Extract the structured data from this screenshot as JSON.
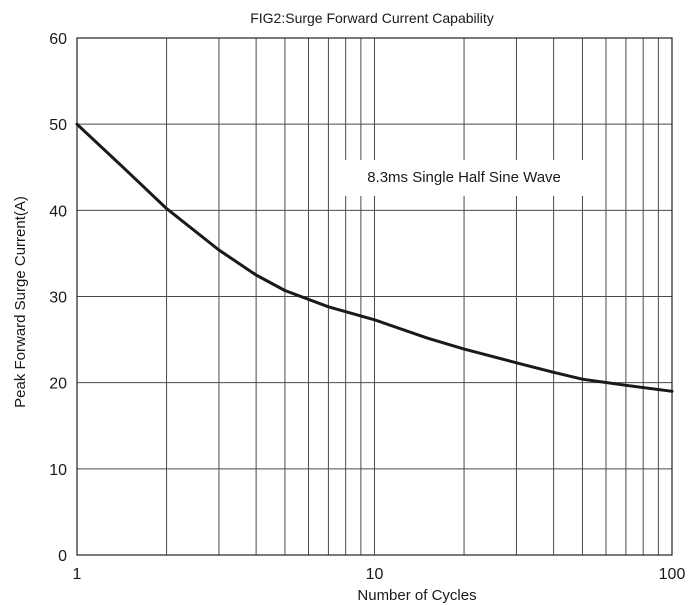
{
  "chart_data": {
    "type": "line",
    "title": "FIG2:Surge Forward Current Capability",
    "xlabel": "Number of Cycles",
    "ylabel": "Peak Forward Surge Current(A)",
    "x_scale": "log",
    "xlim": [
      1,
      100
    ],
    "ylim": [
      0,
      60
    ],
    "x_ticks": [
      1,
      10,
      100
    ],
    "x_tick_labels": [
      "1",
      "10",
      "100"
    ],
    "y_ticks": [
      0,
      10,
      20,
      30,
      40,
      50,
      60
    ],
    "y_tick_labels": [
      "0",
      "10",
      "20",
      "30",
      "40",
      "50",
      "60"
    ],
    "grid": true,
    "annotation": "8.3ms Single Half Sine Wave",
    "series": [
      {
        "x": [
          1,
          1.5,
          2,
          3,
          4,
          5,
          7,
          10,
          15,
          20,
          30,
          40,
          50,
          70,
          100
        ],
        "y": [
          50,
          44.3,
          40.2,
          35.4,
          32.5,
          30.7,
          28.8,
          27.3,
          25.2,
          23.9,
          22.3,
          21.2,
          20.4,
          19.7,
          19.0
        ]
      }
    ],
    "colors": {
      "line": "#1a1a1a",
      "grid": "#4a4a4a",
      "axis": "#222222"
    }
  }
}
